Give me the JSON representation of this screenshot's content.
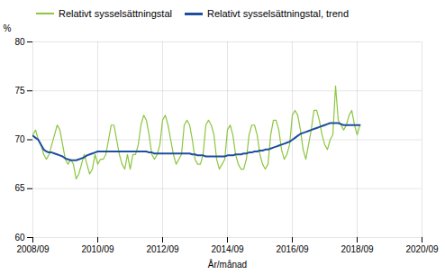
{
  "chart_data": {
    "type": "line",
    "xlabel": "År/månad",
    "ylabel": "%",
    "x": [
      0,
      1,
      2,
      3,
      4,
      5,
      6,
      7,
      8,
      9,
      10,
      11,
      12,
      13,
      14,
      15,
      16,
      17,
      18,
      19,
      20,
      21,
      22,
      23,
      24,
      25,
      26,
      27,
      28,
      29,
      30,
      31,
      32,
      33,
      34,
      35,
      36,
      37,
      38,
      39,
      40,
      41,
      42,
      43,
      44,
      45,
      46,
      47,
      48,
      49,
      50,
      51,
      52,
      53,
      54,
      55,
      56,
      57,
      58,
      59,
      60,
      61,
      62,
      63,
      64,
      65,
      66,
      67,
      68,
      69,
      70,
      71,
      72,
      73,
      74,
      75,
      76,
      77,
      78,
      79,
      80,
      81,
      82,
      83,
      84,
      85,
      86,
      87,
      88,
      89,
      90,
      91,
      92,
      93,
      94,
      95,
      96,
      97,
      98,
      99,
      100,
      101,
      102,
      103,
      104,
      105,
      106,
      107,
      108,
      109,
      110,
      111,
      112,
      113,
      114,
      115,
      116,
      117,
      118,
      119,
      120,
      121
    ],
    "series": [
      {
        "name": "Relativt sysselsättningstal",
        "color": "#8dc63f",
        "values": [
          70.5,
          71.0,
          70.0,
          69.5,
          68.5,
          68.0,
          68.5,
          69.5,
          70.5,
          71.5,
          71.0,
          69.5,
          68.0,
          67.5,
          68.0,
          67.5,
          66.0,
          66.5,
          67.5,
          68.5,
          67.5,
          66.5,
          67.0,
          68.5,
          67.5,
          68.0,
          68.0,
          68.5,
          70.0,
          71.5,
          71.5,
          70.0,
          68.5,
          67.5,
          67.0,
          68.5,
          67.0,
          68.5,
          68.5,
          69.5,
          71.5,
          72.5,
          72.0,
          70.5,
          68.5,
          68.0,
          68.5,
          69.5,
          72.0,
          72.5,
          71.5,
          70.0,
          68.5,
          67.5,
          68.0,
          68.5,
          71.5,
          72.0,
          71.5,
          70.0,
          68.0,
          67.5,
          67.5,
          68.5,
          71.5,
          72.0,
          71.5,
          70.5,
          68.0,
          67.0,
          67.5,
          68.0,
          71.0,
          71.5,
          70.5,
          68.5,
          67.5,
          67.0,
          67.0,
          68.0,
          70.5,
          71.5,
          71.5,
          70.5,
          68.5,
          67.5,
          67.0,
          67.5,
          70.5,
          72.0,
          72.0,
          71.0,
          69.0,
          68.0,
          68.5,
          69.5,
          72.5,
          73.0,
          72.5,
          71.0,
          69.0,
          68.0,
          69.5,
          71.0,
          73.0,
          73.0,
          72.0,
          70.5,
          69.5,
          69.0,
          70.0,
          70.5,
          75.5,
          72.0,
          71.5,
          71.0,
          71.5,
          72.5,
          73.0,
          71.5,
          70.5,
          71.5
        ]
      },
      {
        "name": "Relativt sysselsättningstal, trend",
        "color": "#1f4e9e",
        "values": [
          70.4,
          70.2,
          70.0,
          69.5,
          69.0,
          68.8,
          68.7,
          68.7,
          68.6,
          68.5,
          68.4,
          68.3,
          68.1,
          68.0,
          67.9,
          67.9,
          67.9,
          68.0,
          68.1,
          68.2,
          68.4,
          68.5,
          68.6,
          68.7,
          68.8,
          68.8,
          68.8,
          68.8,
          68.8,
          68.8,
          68.8,
          68.8,
          68.8,
          68.8,
          68.8,
          68.8,
          68.8,
          68.8,
          68.8,
          68.8,
          68.8,
          68.8,
          68.8,
          68.7,
          68.7,
          68.6,
          68.6,
          68.6,
          68.6,
          68.6,
          68.6,
          68.6,
          68.6,
          68.6,
          68.6,
          68.6,
          68.6,
          68.6,
          68.6,
          68.5,
          68.5,
          68.4,
          68.4,
          68.4,
          68.3,
          68.3,
          68.3,
          68.3,
          68.3,
          68.3,
          68.3,
          68.3,
          68.4,
          68.4,
          68.4,
          68.5,
          68.5,
          68.5,
          68.6,
          68.6,
          68.7,
          68.7,
          68.8,
          68.8,
          68.9,
          68.9,
          69.0,
          69.0,
          69.1,
          69.2,
          69.3,
          69.4,
          69.5,
          69.6,
          69.7,
          69.8,
          70.0,
          70.2,
          70.4,
          70.6,
          70.7,
          70.8,
          70.9,
          71.0,
          71.1,
          71.2,
          71.3,
          71.4,
          71.5,
          71.6,
          71.7,
          71.7,
          71.7,
          71.7,
          71.6,
          71.5,
          71.5,
          71.5,
          71.5,
          71.5,
          71.5,
          71.5
        ]
      }
    ],
    "xlim": [
      0,
      144
    ],
    "xticks": [
      {
        "value": 0,
        "label": "2008/09"
      },
      {
        "value": 24,
        "label": "2010/09"
      },
      {
        "value": 48,
        "label": "2012/09"
      },
      {
        "value": 72,
        "label": "2014/09"
      },
      {
        "value": 96,
        "label": "2016/09"
      },
      {
        "value": 120,
        "label": "2018/09"
      },
      {
        "value": 144,
        "label": "2020/09"
      }
    ],
    "ylim": [
      60,
      80
    ],
    "yticks": [
      60,
      65,
      70,
      75,
      80
    ],
    "grid": true,
    "legend": "top"
  }
}
